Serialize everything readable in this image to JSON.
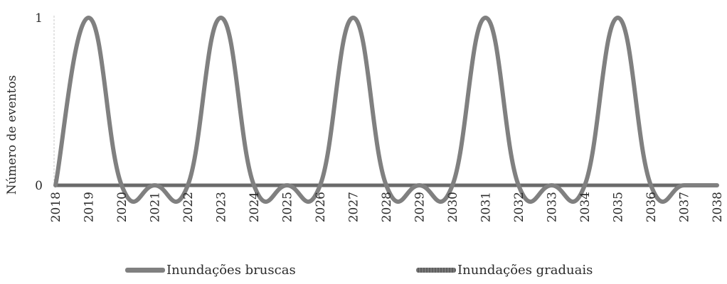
{
  "chart_data": {
    "type": "line",
    "title": "",
    "xlabel": "",
    "ylabel": "Número de eventos",
    "categories": [
      "2018",
      "2019",
      "2020",
      "2021",
      "2022",
      "2023",
      "2024",
      "2025",
      "2026",
      "2027",
      "2028",
      "2029",
      "2030",
      "2031",
      "2032",
      "2033",
      "2034",
      "2035",
      "2036",
      "2037",
      "2038"
    ],
    "series": [
      {
        "name": "Inundações bruscas",
        "values": [
          0,
          1,
          0,
          0,
          0,
          1,
          0,
          0,
          0,
          1,
          0,
          0,
          0,
          1,
          0,
          0,
          0,
          1,
          0,
          0,
          0
        ],
        "color": "#808080"
      },
      {
        "name": "Inundações graduais",
        "values": [
          0,
          0,
          0,
          0,
          0,
          0,
          0,
          0,
          0,
          0,
          0,
          0,
          0,
          0,
          0,
          0,
          0,
          0,
          0,
          0,
          0
        ],
        "color": "#6a6a6a"
      }
    ],
    "yticks": [
      0,
      1
    ],
    "ylim": [
      0,
      1
    ],
    "grid": false,
    "legend": "bottom"
  }
}
